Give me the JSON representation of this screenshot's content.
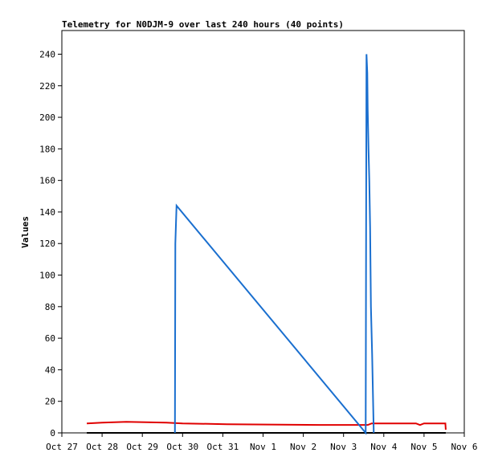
{
  "chart_data": {
    "type": "line",
    "title": "Telemetry for N0DJM-9 over last 240 hours (40 points)",
    "y_label": "Values",
    "xlim": [
      0,
      10
    ],
    "ylim": [
      0,
      255
    ],
    "xticks": [
      {
        "value": 0,
        "label": "Oct 27"
      },
      {
        "value": 1,
        "label": "Oct 28"
      },
      {
        "value": 2,
        "label": "Oct 29"
      },
      {
        "value": 3,
        "label": "Oct 30"
      },
      {
        "value": 4,
        "label": "Oct 31"
      },
      {
        "value": 5,
        "label": "Nov 1"
      },
      {
        "value": 6,
        "label": "Nov 2"
      },
      {
        "value": 7,
        "label": "Nov 3"
      },
      {
        "value": 8,
        "label": "Nov 4"
      },
      {
        "value": 9,
        "label": "Nov 5"
      },
      {
        "value": 10,
        "label": "Nov 6"
      }
    ],
    "yticks": [
      0,
      20,
      40,
      60,
      80,
      100,
      120,
      140,
      160,
      180,
      200,
      220,
      240
    ],
    "series": [
      {
        "color": "#000000",
        "x": [
          0.62,
          3,
          6,
          9.54
        ],
        "values": [
          0,
          0,
          0,
          0
        ]
      },
      {
        "color": "#e00000",
        "x": [
          0.62,
          1.0,
          1.6,
          2.6,
          3.0,
          4.1,
          6.4,
          7.6,
          7.7,
          8.8,
          8.9,
          9.0,
          9.53,
          9.54
        ],
        "values": [
          6,
          6.5,
          7,
          6.5,
          6,
          5.5,
          5,
          5,
          6,
          6,
          5,
          6,
          6,
          2
        ]
      },
      {
        "color": "#1a6fcf",
        "x": [
          2.81,
          2.82,
          2.85,
          7.55,
          7.57,
          7.59,
          7.6,
          7.62,
          7.64,
          7.66,
          7.68,
          7.71,
          7.75
        ],
        "values": [
          0,
          120,
          144,
          0,
          240,
          228,
          205,
          180,
          160,
          130,
          80,
          50,
          0
        ]
      }
    ]
  }
}
